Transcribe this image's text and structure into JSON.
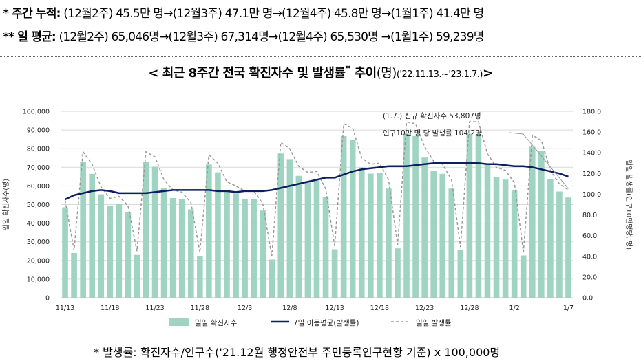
{
  "header": {
    "weekly_label": "* 주간 누적:",
    "weekly_text": "(12월2주) 45.5만 명→(12월3주) 47.1만 명→(12월4주) 45.8만 명→(1월1주) 41.4만 명",
    "daily_label": "** 일 평균:",
    "daily_text": "(12월2주) 65,046명→(12월3주) 67,314명→(12월4주) 65,530명 →(1월1주) 59,239명"
  },
  "chart_title": {
    "main": "< 최근 8주간 전국 확진자수 및 발생률",
    "star": "*",
    "suffix": " 추이",
    "unit": "(명)",
    "period": "('22.11.13.~'23.1.7.)",
    "close": ">"
  },
  "footnote": "* 발생률: 확진자수/인구수('21.12월 행정안전부 주민등록인구현황 기준) x 100,000명",
  "chart_data": {
    "type": "bar+line",
    "x_ticks": [
      "11/13",
      "11/18",
      "11/23",
      "11/28",
      "12/3",
      "12/8",
      "12/13",
      "12/18",
      "12/23",
      "12/28",
      "1/2",
      "1/7"
    ],
    "y_left_label": "일일 확진자수(명)",
    "y_right_label": "일일 발생률(인구10만명당, 명)",
    "y_left_range": [
      0,
      100000
    ],
    "y_left_ticks": [
      "0",
      "10,000",
      "20,000",
      "30,000",
      "40,000",
      "50,000",
      "60,000",
      "70,000",
      "80,000",
      "90,000",
      "100,000"
    ],
    "y_right_range": [
      0,
      180
    ],
    "y_right_ticks": [
      "0.0",
      "20.0",
      "40.0",
      "60.0",
      "80.0",
      "100.0",
      "120.0",
      "140.0",
      "160.0",
      "180.0"
    ],
    "grid": true,
    "legend_position": "bottom",
    "series": [
      {
        "name": "일일 확진자수",
        "type": "bar",
        "color": "#9fd3c2",
        "values": [
          48500,
          24000,
          73000,
          66500,
          55500,
          49500,
          50500,
          46000,
          23000,
          72700,
          70300,
          59000,
          53500,
          52800,
          47400,
          22500,
          71500,
          67300,
          57900,
          56000,
          53000,
          53000,
          46800,
          20500,
          77400,
          74400,
          65400,
          62700,
          62900,
          54100,
          26000,
          86700,
          84500,
          69900,
          66600,
          66900,
          58600,
          26500,
          88000,
          86800,
          75200,
          68000,
          66500,
          58600,
          25500,
          88000,
          87700,
          71700,
          64800,
          63400,
          57500,
          22700,
          81000,
          78700,
          63600,
          57000,
          53800
        ]
      },
      {
        "name": "7일 이동평균(발생률)",
        "type": "line",
        "axis": "right",
        "color": "#0b1f5e",
        "values": [
          95,
          99,
          101,
          103,
          104,
          103,
          101,
          101,
          101,
          101,
          102,
          103,
          104,
          104,
          104,
          104,
          104,
          103,
          103,
          102,
          103,
          103,
          103,
          104,
          106,
          108,
          110,
          112,
          114,
          116,
          116,
          119,
          122,
          124,
          125,
          126,
          127,
          127,
          127,
          128,
          129,
          130,
          130,
          130,
          130,
          130,
          130,
          129,
          129,
          128,
          127,
          127,
          126,
          124,
          122,
          120,
          117
        ]
      },
      {
        "name": "일일 발생률",
        "type": "line",
        "axis": "right",
        "dashed": true,
        "color": "#999999",
        "values": [
          94,
          46,
          141,
          129,
          107,
          96,
          98,
          89,
          45,
          141,
          136,
          114,
          104,
          102,
          92,
          44,
          138,
          130,
          112,
          108,
          103,
          103,
          91,
          40,
          150,
          144,
          127,
          121,
          122,
          105,
          50,
          168,
          164,
          135,
          129,
          130,
          114,
          51,
          170,
          168,
          146,
          132,
          129,
          114,
          49,
          170,
          170,
          139,
          126,
          123,
          111,
          44,
          157,
          152,
          123,
          110,
          104
        ]
      }
    ],
    "annotation": {
      "line1": "(1.7.) 신규 확진자수 53,807명",
      "line2": "인구10만 명 당 발생률 104.2명"
    }
  }
}
